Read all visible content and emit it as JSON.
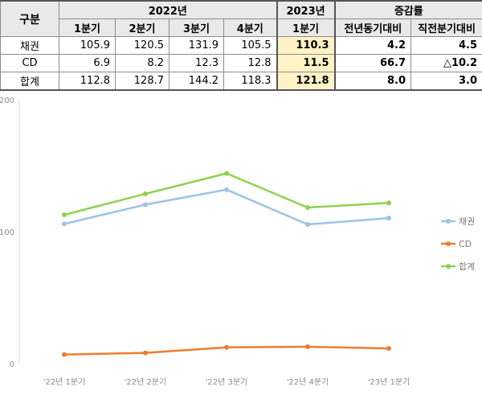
{
  "table": {
    "header_corner": "구분",
    "group_2022": "2022년",
    "group_2023": "2023년",
    "group_change": "증감률",
    "sub_headers": [
      "1분기",
      "2분기",
      "3분기",
      "4분기",
      "1분기",
      "전년동기대비",
      "직전분기대비"
    ],
    "rows": [
      {
        "label": "채권",
        "values": [
          "105.9",
          "120.5",
          "131.9",
          "105.5"
        ],
        "q2023": "110.3",
        "yoy": "4.2",
        "qoq": "4.5"
      },
      {
        "label": "CD",
        "values": [
          "6.9",
          "8.2",
          "12.3",
          "12.8"
        ],
        "q2023": "11.5",
        "yoy": "66.7",
        "qoq": "△10.2"
      },
      {
        "label": "합계",
        "values": [
          "112.8",
          "128.7",
          "144.2",
          "118.3"
        ],
        "q2023": "121.8",
        "yoy": "8.0",
        "qoq": "3.0"
      }
    ]
  },
  "chart_data": {
    "type": "line",
    "categories": [
      "'22년 1분기",
      "'22년 2분기",
      "'22년 3분기",
      "'22년 4분기",
      "'23년 1분기"
    ],
    "series": [
      {
        "name": "채권",
        "values": [
          105.9,
          120.5,
          131.9,
          105.5,
          110.3
        ],
        "color": "#9dc3e6"
      },
      {
        "name": "CD",
        "values": [
          6.9,
          8.2,
          12.3,
          12.8,
          11.5
        ],
        "color": "#ed7d31"
      },
      {
        "name": "합계",
        "values": [
          112.8,
          128.7,
          144.2,
          118.3,
          121.8
        ],
        "color": "#8fd14f"
      }
    ],
    "y_ticks": [
      "0",
      "100",
      "200"
    ],
    "ylim": [
      0,
      200
    ],
    "grid": false,
    "legend_position": "right"
  }
}
